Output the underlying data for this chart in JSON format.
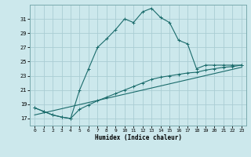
{
  "xlabel": "Humidex (Indice chaleur)",
  "background_color": "#cce8ec",
  "grid_color": "#aacdd4",
  "line_color": "#1a6b6b",
  "xlim": [
    -0.5,
    23.5
  ],
  "ylim": [
    16.0,
    33.0
  ],
  "yticks": [
    17,
    19,
    21,
    23,
    25,
    27,
    29,
    31
  ],
  "xticks": [
    0,
    1,
    2,
    3,
    4,
    5,
    6,
    7,
    8,
    9,
    10,
    11,
    12,
    13,
    14,
    15,
    16,
    17,
    18,
    19,
    20,
    21,
    22,
    23
  ],
  "line1_x": [
    0,
    1,
    2,
    3,
    4,
    5,
    6,
    7,
    8,
    9,
    10,
    11,
    12,
    13,
    14,
    15,
    16,
    17,
    18,
    19,
    20,
    21,
    22,
    23
  ],
  "line1_y": [
    18.5,
    18.0,
    17.5,
    17.2,
    17.0,
    21.0,
    24.0,
    27.0,
    28.2,
    29.5,
    31.0,
    30.5,
    32.0,
    32.5,
    31.2,
    30.5,
    28.0,
    27.5,
    24.0,
    24.5,
    24.5,
    24.5,
    24.5,
    24.5
  ],
  "line2_x": [
    0,
    1,
    2,
    3,
    4,
    5,
    6,
    7,
    8,
    9,
    10,
    11,
    12,
    13,
    14,
    15,
    16,
    17,
    18,
    19,
    20,
    21,
    22,
    23
  ],
  "line2_y": [
    18.5,
    18.0,
    17.5,
    17.2,
    17.0,
    18.3,
    18.9,
    19.5,
    20.0,
    20.5,
    21.0,
    21.5,
    22.0,
    22.5,
    22.8,
    23.0,
    23.2,
    23.4,
    23.5,
    23.8,
    24.0,
    24.2,
    24.3,
    24.5
  ],
  "line3_x": [
    0,
    23
  ],
  "line3_y": [
    17.5,
    24.2
  ]
}
